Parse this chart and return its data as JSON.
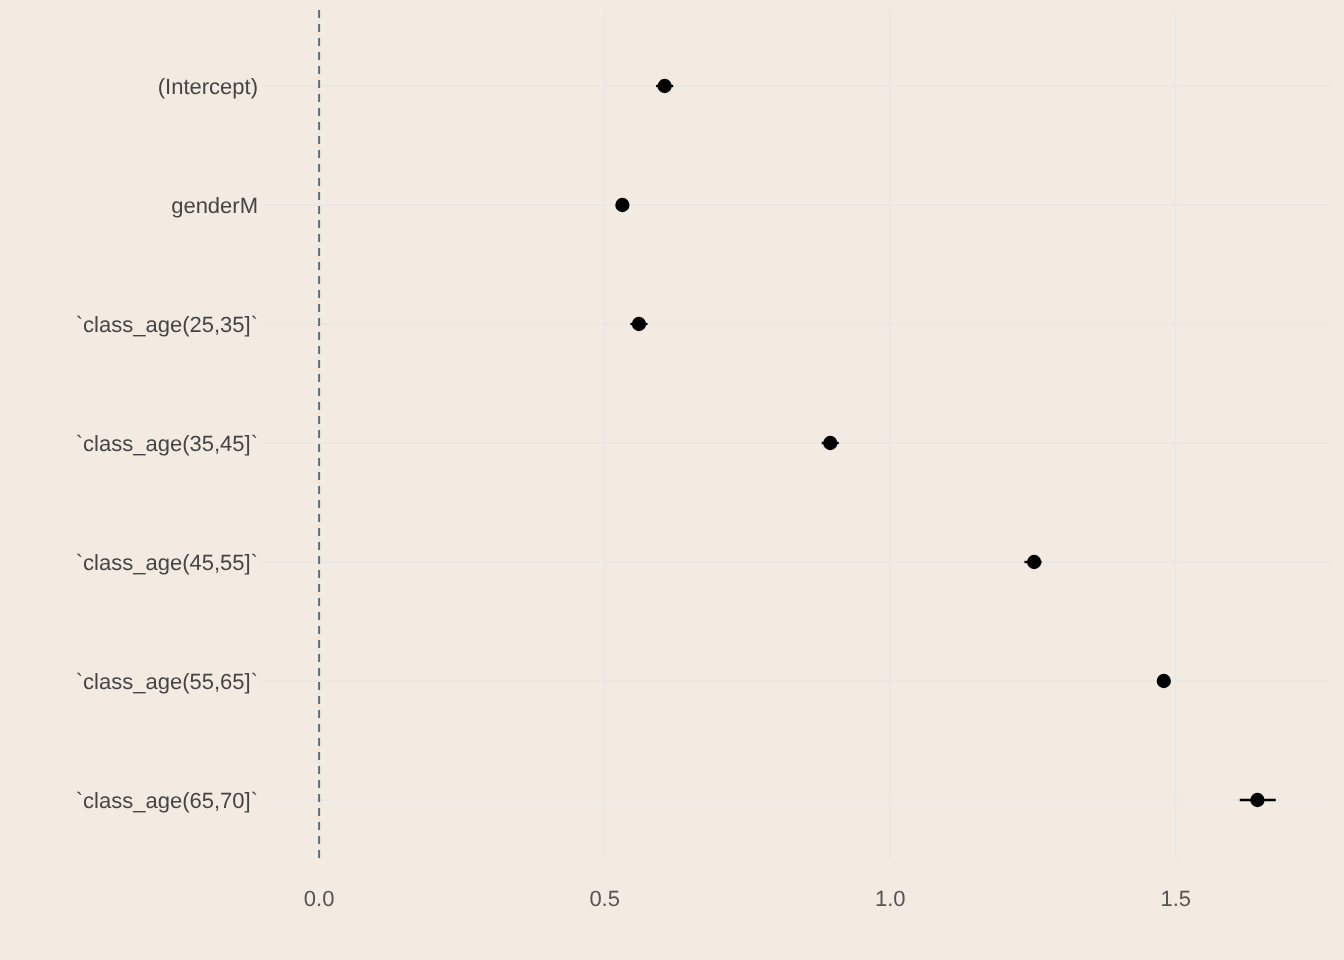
{
  "chart_data": {
    "type": "scatter",
    "orientation": "horizontal",
    "categories": [
      "(Intercept)",
      "genderM",
      "`class_age(25,35]`",
      "`class_age(35,45]`",
      "`class_age(45,55]`",
      "`class_age(55,65]`",
      "`class_age(65,70]`"
    ],
    "values": [
      0.605,
      0.531,
      0.56,
      0.895,
      1.252,
      1.479,
      1.643
    ],
    "errors": [
      [
        0.59,
        0.62
      ],
      null,
      [
        0.545,
        0.575
      ],
      [
        0.88,
        0.91
      ],
      [
        1.235,
        1.265
      ],
      null,
      [
        1.612,
        1.675
      ]
    ],
    "color": "#000000",
    "marker": "circle",
    "xlim": [
      -0.1,
      1.77
    ],
    "xticks": [
      {
        "value": 0,
        "label": "0.0"
      },
      {
        "value": 0.5,
        "label": "0.5"
      },
      {
        "value": 1,
        "label": "1.0"
      },
      {
        "value": 1.5,
        "label": "1.5"
      }
    ],
    "ref_lines": [
      {
        "axis": "x",
        "value": 0,
        "color": "#5a6f80",
        "line_style": "dashed"
      }
    ],
    "grid": true
  }
}
